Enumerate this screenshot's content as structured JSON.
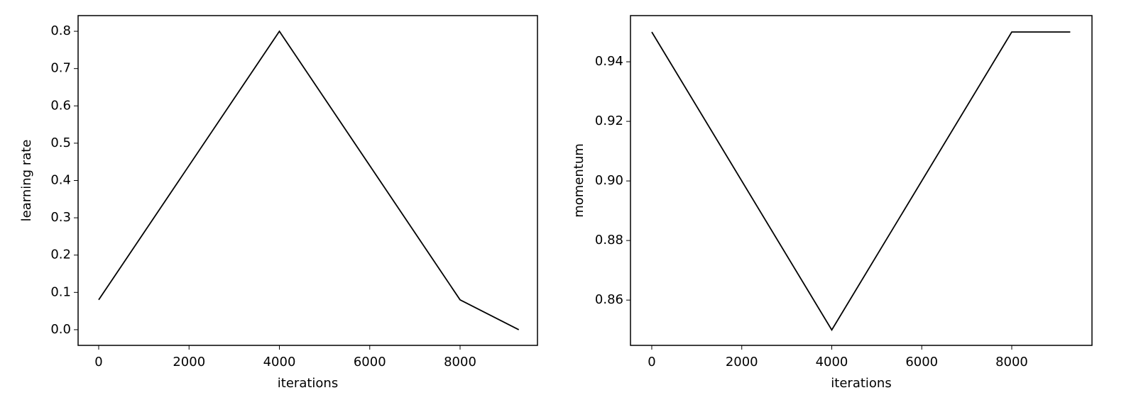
{
  "chart_data": [
    {
      "type": "line",
      "x": [
        0,
        4000,
        8000,
        9300
      ],
      "values": [
        0.08,
        0.8,
        0.08,
        0.0
      ],
      "color": "#000000",
      "x_label": "iterations",
      "y_label": "learning rate",
      "xlim": [
        -456,
        9713
      ],
      "ylim": [
        -0.042,
        0.842
      ],
      "xticks": [
        0,
        2000,
        4000,
        6000,
        8000
      ],
      "yticks": [
        {
          "value": 0,
          "label": "0.0"
        },
        0.1,
        0.2,
        0.3,
        0.4,
        0.5,
        0.6,
        0.7,
        0.8
      ]
    },
    {
      "type": "line",
      "x": [
        0,
        4000,
        8000,
        9300
      ],
      "values": [
        0.95,
        0.85,
        0.95,
        0.95
      ],
      "color": "#000000",
      "x_label": "iterations",
      "y_label": "momentum",
      "xlim": [
        -473,
        9783
      ],
      "ylim": [
        0.8448,
        0.9555
      ],
      "xticks": [
        0,
        2000,
        4000,
        6000,
        8000
      ],
      "yticks": [
        0.86,
        0.88,
        {
          "value": 0.9,
          "label": "0.90"
        },
        0.92,
        0.94
      ]
    }
  ]
}
